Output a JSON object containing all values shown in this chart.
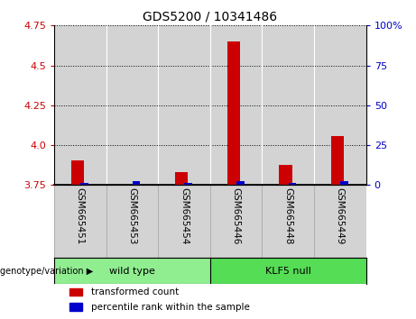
{
  "title": "GDS5200 / 10341486",
  "samples": [
    "GSM665451",
    "GSM665453",
    "GSM665454",
    "GSM665446",
    "GSM665448",
    "GSM665449"
  ],
  "red_values": [
    3.905,
    3.755,
    3.832,
    4.648,
    3.878,
    4.055
  ],
  "blue_values": [
    3.762,
    3.774,
    3.762,
    3.776,
    3.762,
    3.773
  ],
  "baseline": 3.75,
  "ylim": [
    3.75,
    4.75
  ],
  "yticks": [
    3.75,
    4.0,
    4.25,
    4.5,
    4.75
  ],
  "right_yticks": [
    0,
    25,
    50,
    75,
    100
  ],
  "wild_type_color": "#90ee90",
  "klf5_null_color": "#55dd55",
  "bar_background": "#d3d3d3",
  "red_color": "#cc0000",
  "blue_color": "#0000cc",
  "left_tick_color": "#cc0000",
  "right_tick_color": "#0000cc",
  "red_bar_width": 0.25,
  "blue_bar_width": 0.15
}
